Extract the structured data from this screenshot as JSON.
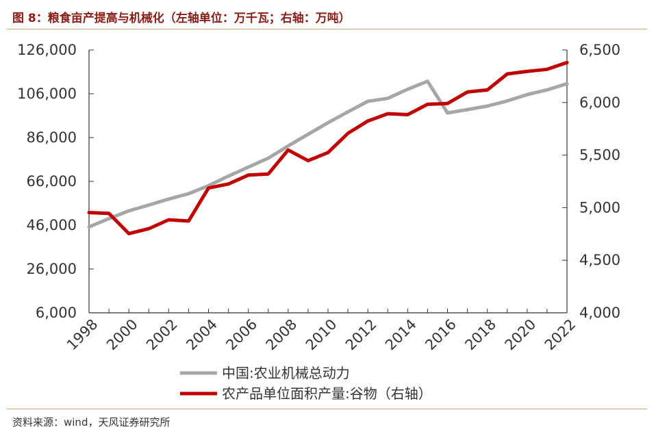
{
  "title": "图 8：粮食亩产提高与机械化（左轴单位：万千瓦；右轴：万吨）",
  "source": "资料来源：wind，天风证券研究所",
  "colors": {
    "gray_series": "#a6a6a6",
    "red_series": "#c00000",
    "rule": "#e0a06a"
  },
  "chart_data": {
    "type": "line",
    "x": [
      "1998",
      "1999",
      "2000",
      "2001",
      "2002",
      "2003",
      "2004",
      "2005",
      "2006",
      "2007",
      "2008",
      "2009",
      "2010",
      "2011",
      "2012",
      "2013",
      "2014",
      "2015",
      "2016",
      "2017",
      "2018",
      "2019",
      "2020",
      "2021",
      "2022"
    ],
    "x_tick_labels": [
      "1998",
      "2000",
      "2002",
      "2004",
      "2006",
      "2008",
      "2010",
      "2012",
      "2014",
      "2016",
      "2018",
      "2020",
      "2022"
    ],
    "y_left": {
      "lim": [
        6000,
        126000
      ],
      "ticks": [
        "6,000",
        "26,000",
        "46,000",
        "66,000",
        "86,000",
        "106,000",
        "126,000"
      ]
    },
    "y_right": {
      "lim": [
        4000,
        6500
      ],
      "ticks": [
        "4,000",
        "4,500",
        "5,000",
        "5,500",
        "6,000",
        "6,500"
      ]
    },
    "series": [
      {
        "name": "中国:农业机械总动力",
        "axis": "left",
        "values": [
          45208,
          48996,
          52574,
          55172,
          57930,
          60387,
          64028,
          68398,
          72522,
          76590,
          82190,
          87496,
          92780,
          97735,
          102559,
          103907,
          108057,
          111728,
          97246,
          98783,
          100372,
          102758,
          105622,
          107768,
          110597
        ]
      },
      {
        "name": "农产品单位面积产量:谷物（右轴）",
        "axis": "right",
        "values": [
          4953,
          4945,
          4753,
          4800,
          4885,
          4873,
          5187,
          5225,
          5310,
          5320,
          5548,
          5447,
          5524,
          5707,
          5824,
          5894,
          5885,
          5983,
          5991,
          6100,
          6120,
          6272,
          6296,
          6316,
          6380
        ]
      }
    ],
    "grid": false,
    "legend": "bottom-center"
  }
}
